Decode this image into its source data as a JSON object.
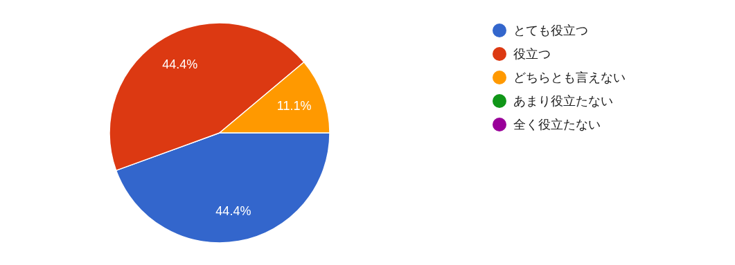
{
  "chart_data": {
    "type": "pie",
    "categories": [
      "とても役立つ",
      "役立つ",
      "どちらとも言えない",
      "あまり役立たない",
      "全く役立たない"
    ],
    "values": [
      44.4,
      44.4,
      11.1,
      0,
      0
    ],
    "colors": [
      "#3366cc",
      "#dc3912",
      "#ff9900",
      "#109618",
      "#990099"
    ],
    "value_labels": [
      "44.4%",
      "44.4%",
      "11.1%",
      null,
      null
    ],
    "legend": "right"
  }
}
